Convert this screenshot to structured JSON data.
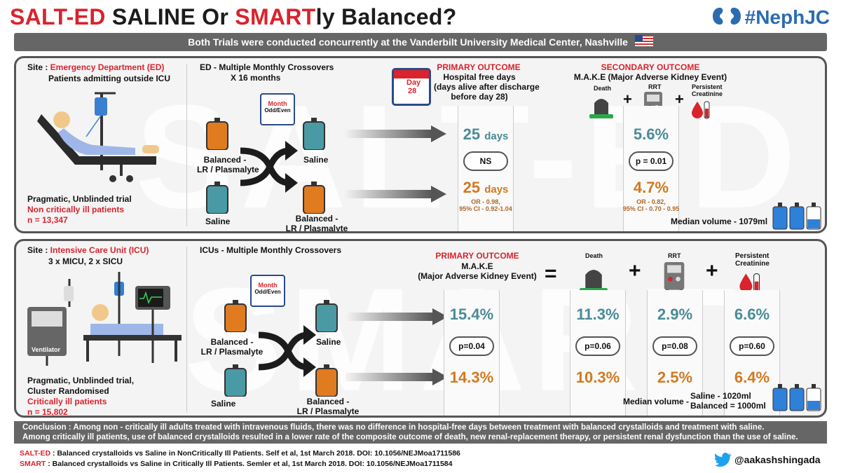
{
  "header": {
    "title_part1": "SALT-ED",
    "title_part2": " SALINE Or ",
    "title_part3": "SMART",
    "title_part4": "ly Balanced?",
    "brand": "#NephJC",
    "subtitle": "Both Trials were conducted concurrently at the Vanderbilt University Medical Center, Nashville"
  },
  "salted": {
    "watermark": "SALT-ED",
    "site_label": "Site : ",
    "site_value": "Emergency Department (ED)",
    "site_sub": "Patients admitting outside ICU",
    "design": "Pragmatic, Unblinded trial",
    "population": "Non critically ill patients",
    "n": "n = 13,347",
    "crossover_line1": "ED - Multiple Monthly Crossovers",
    "crossover_line2": "X 16 months",
    "calendar_month": "Month",
    "calendar_sub": "Odd/Even",
    "balanced_label_1": "Balanced -",
    "balanced_label_2": "LR / Plasmalyte",
    "saline_label": "Saline",
    "primary_title": "PRIMARY OUTCOME",
    "primary_l1": "Hospital free days",
    "primary_l2": "(days alive after discharge",
    "primary_l3": "before day 28)",
    "day_cal_top": "Day",
    "day_cal_num": "28",
    "primary_saline": "25",
    "primary_saline_unit": "days",
    "primary_p": "NS",
    "primary_balanced": "25",
    "primary_balanced_unit": "days",
    "primary_or1": "OR - 0.98,",
    "primary_or2": "95% CI - 0.92-1.04",
    "secondary_title": "SECONDARY OUTCOME",
    "secondary_sub": "M.A.K.E (Major Adverse Kidney Event)",
    "death_label": "Death",
    "rrt_label": "RRT",
    "creat_label_1": "Persistent",
    "creat_label_2": "Creatinine",
    "plus": "+",
    "secondary_saline": "5.6%",
    "secondary_p": "p = 0.01",
    "secondary_balanced": "4.7%",
    "secondary_or1": "OR - 0.82,",
    "secondary_or2": "95% CI - 0.70 - 0.95",
    "median_volume": "Median volume - 1079ml"
  },
  "smart": {
    "watermark": "SMART",
    "site_label": "Site : ",
    "site_value": "Intensive Care Unit (ICU)",
    "site_sub": "3 x MICU, 2 x SICU",
    "ventilator": "Ventilator",
    "design1": "Pragmatic, Unblinded trial,",
    "design2": "Cluster Randomised",
    "population": "Critically ill patients",
    "n": "n = 15,802",
    "crossover_line1": "ICUs - Multiple Monthly Crossovers",
    "calendar_month": "Month",
    "calendar_sub": "Odd/Even",
    "balanced_label_1": "Balanced -",
    "balanced_label_2": "LR / Plasmalyte",
    "saline_label": "Saline",
    "primary_title": "PRIMARY OUTCOME",
    "primary_l1": "M.A.K.E",
    "primary_l2": "(Major Adverse Kidney Event)",
    "equals": "=",
    "plus": "+",
    "death_label": "Death",
    "rrt_label": "RRT",
    "creat_label_1": "Persistent",
    "creat_label_2": "Creatinine",
    "cols": [
      {
        "name": "make",
        "saline": "15.4%",
        "p": "p=0.04",
        "balanced": "14.3%"
      },
      {
        "name": "death",
        "saline": "11.3%",
        "p": "p=0.06",
        "balanced": "10.3%"
      },
      {
        "name": "rrt",
        "saline": "2.9%",
        "p": "p=0.08",
        "balanced": "2.5%"
      },
      {
        "name": "creatinine",
        "saline": "6.6%",
        "p": "p=0.60",
        "balanced": "6.4%"
      }
    ],
    "median_label": "Median volume -",
    "median_saline": "Saline - 1020ml",
    "median_balanced": "Balanced = 1000ml"
  },
  "conclusion": {
    "line1": "Conclusion : Among non - critically ill adults treated with intravenous fluids, there was no difference in hospital-free days between treatment with balanced crystalloids and treatment with saline.",
    "line2": "Among critically ill patients, use of balanced crystalloids resulted in a lower rate of the composite outcome of death, new renal-replacement therapy, or persistent renal dysfunction than the use of saline."
  },
  "references": {
    "ref1_tag": "SALT-ED",
    "ref1_text": " : Balanced crystalloids vs Saline in NonCritically Ill Patients. Self et al, 1st March 2018. DOI: 10.1056/NEJMoa1711586",
    "ref2_tag": "SMART",
    "ref2_text": " : Balanced crystalloids vs Saline in Critically Ill Patients. Semler et al, 1st March 2018. DOI: 10.1056/NEJMoa1711584",
    "twitter": "@aakashshingada"
  },
  "colors": {
    "red": "#d9232d",
    "saline_blue": "#4a9aa6",
    "balanced_orange": "#e07b1f",
    "panel_border": "#555555",
    "bar_gray": "#666666",
    "brand_blue": "#2b6cb0"
  }
}
